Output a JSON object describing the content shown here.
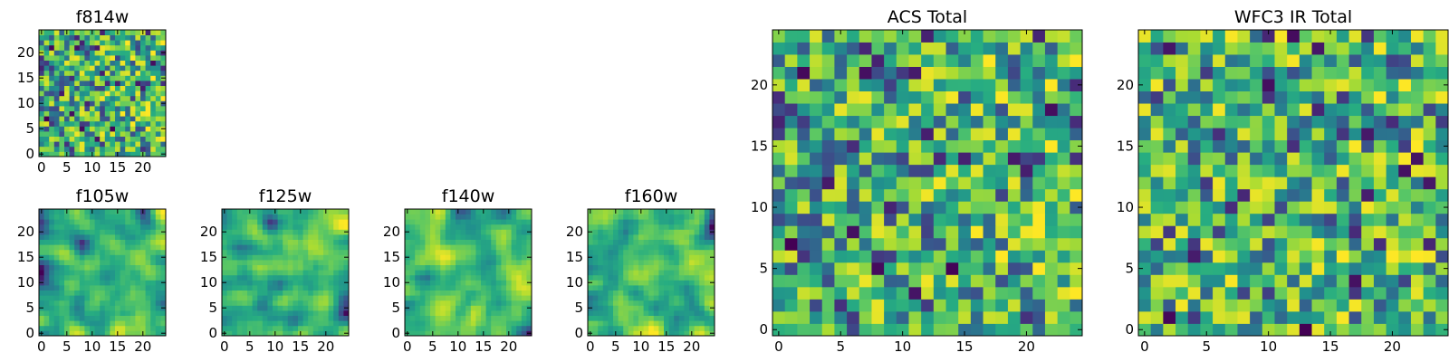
{
  "chart_data": [
    {
      "type": "heatmap",
      "title": "f814w",
      "colormap": "viridis",
      "grid_size": [
        25,
        25
      ],
      "xlim": [
        -0.5,
        24.5
      ],
      "ylim": [
        -0.5,
        24.5
      ],
      "xticks": [
        0,
        5,
        10,
        15,
        20
      ],
      "yticks": [
        0,
        5,
        10,
        15,
        20
      ],
      "xtick_labels": [
        "0",
        "5",
        "10",
        "15",
        "20"
      ],
      "ytick_labels": [
        "0",
        "5",
        "10",
        "15",
        "20"
      ],
      "seed": 11,
      "smooth": 0,
      "gradient": [
        0.08,
        0.02
      ]
    },
    {
      "type": "heatmap",
      "title": "f105w",
      "colormap": "viridis",
      "grid_size": [
        25,
        25
      ],
      "xlim": [
        -0.5,
        24.5
      ],
      "ylim": [
        -0.5,
        24.5
      ],
      "xticks": [
        0,
        5,
        10,
        15,
        20
      ],
      "yticks": [
        0,
        5,
        10,
        15,
        20
      ],
      "xtick_labels": [
        "0",
        "5",
        "10",
        "15",
        "20"
      ],
      "ytick_labels": [
        "0",
        "5",
        "10",
        "15",
        "20"
      ],
      "seed": 23,
      "smooth": 2,
      "gradient": [
        0.1,
        -0.04
      ]
    },
    {
      "type": "heatmap",
      "title": "f125w",
      "colormap": "viridis",
      "grid_size": [
        25,
        25
      ],
      "xlim": [
        -0.5,
        24.5
      ],
      "ylim": [
        -0.5,
        24.5
      ],
      "xticks": [
        0,
        5,
        10,
        15,
        20
      ],
      "yticks": [
        0,
        5,
        10,
        15,
        20
      ],
      "xtick_labels": [
        "0",
        "5",
        "10",
        "15",
        "20"
      ],
      "ytick_labels": [
        "0",
        "5",
        "10",
        "15",
        "20"
      ],
      "seed": 37,
      "smooth": 2,
      "gradient": [
        0.04,
        0.0
      ]
    },
    {
      "type": "heatmap",
      "title": "f140w",
      "colormap": "viridis",
      "grid_size": [
        25,
        25
      ],
      "xlim": [
        -0.5,
        24.5
      ],
      "ylim": [
        -0.5,
        24.5
      ],
      "xticks": [
        0,
        5,
        10,
        15,
        20
      ],
      "yticks": [
        0,
        5,
        10,
        15,
        20
      ],
      "xtick_labels": [
        "0",
        "5",
        "10",
        "15",
        "20"
      ],
      "ytick_labels": [
        "0",
        "5",
        "10",
        "15",
        "20"
      ],
      "seed": 41,
      "smooth": 2,
      "gradient": [
        0.06,
        -0.06
      ]
    },
    {
      "type": "heatmap",
      "title": "f160w",
      "colormap": "viridis",
      "grid_size": [
        25,
        25
      ],
      "xlim": [
        -0.5,
        24.5
      ],
      "ylim": [
        -0.5,
        24.5
      ],
      "xticks": [
        0,
        5,
        10,
        15,
        20
      ],
      "yticks": [
        0,
        5,
        10,
        15,
        20
      ],
      "xtick_labels": [
        "0",
        "5",
        "10",
        "15",
        "20"
      ],
      "ytick_labels": [
        "0",
        "5",
        "10",
        "15",
        "20"
      ],
      "seed": 53,
      "smooth": 2,
      "gradient": [
        0.05,
        -0.05
      ]
    },
    {
      "type": "heatmap",
      "title": "ACS Total",
      "colormap": "viridis",
      "grid_size": [
        25,
        25
      ],
      "xlim": [
        -0.5,
        24.5
      ],
      "ylim": [
        -0.5,
        24.5
      ],
      "xticks": [
        0,
        5,
        10,
        15,
        20
      ],
      "yticks": [
        0,
        5,
        10,
        15,
        20
      ],
      "xtick_labels": [
        "0",
        "5",
        "10",
        "15",
        "20"
      ],
      "ytick_labels": [
        "0",
        "5",
        "10",
        "15",
        "20"
      ],
      "seed": 11,
      "smooth": 0,
      "gradient": [
        0.08,
        0.02
      ]
    },
    {
      "type": "heatmap",
      "title": "WFC3 IR Total",
      "colormap": "viridis",
      "grid_size": [
        25,
        25
      ],
      "xlim": [
        -0.5,
        24.5
      ],
      "ylim": [
        -0.5,
        24.5
      ],
      "xticks": [
        0,
        5,
        10,
        15,
        20
      ],
      "yticks": [
        0,
        5,
        10,
        15,
        20
      ],
      "xtick_labels": [
        "0",
        "5",
        "10",
        "15",
        "20"
      ],
      "ytick_labels": [
        "0",
        "5",
        "10",
        "15",
        "20"
      ],
      "seed": 97,
      "smooth": 0,
      "gradient": [
        0.03,
        0.0
      ]
    }
  ]
}
